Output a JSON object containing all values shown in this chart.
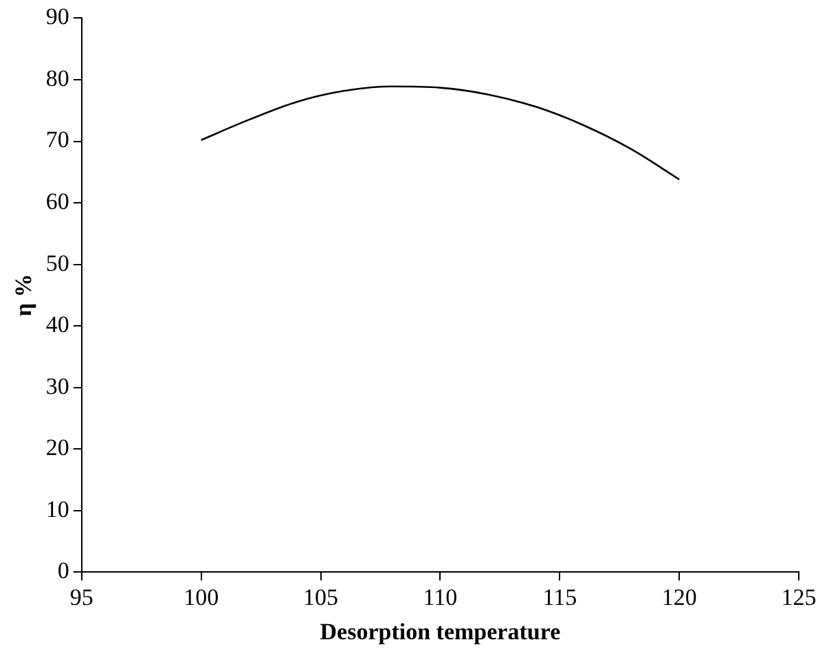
{
  "chart_data": {
    "type": "line",
    "xlabel": "Desorption temperature",
    "ylabel": "η %",
    "series": [
      {
        "color": "#000000",
        "x": [
          100,
          102,
          104,
          106,
          108,
          110,
          112,
          114,
          116,
          118,
          120
        ],
        "values": [
          70.2,
          73.5,
          76.4,
          78.2,
          78.9,
          78.7,
          77.6,
          75.6,
          72.6,
          68.7,
          63.8
        ]
      }
    ],
    "xlim": [
      95,
      125
    ],
    "xticks": [
      95,
      100,
      105,
      110,
      115,
      120,
      125
    ],
    "ylim": [
      0,
      90
    ],
    "yticks": [
      0,
      10,
      20,
      30,
      40,
      50,
      60,
      70,
      80,
      90
    ],
    "grid": false,
    "legend": false,
    "marker": "none",
    "line_style": "solid"
  }
}
